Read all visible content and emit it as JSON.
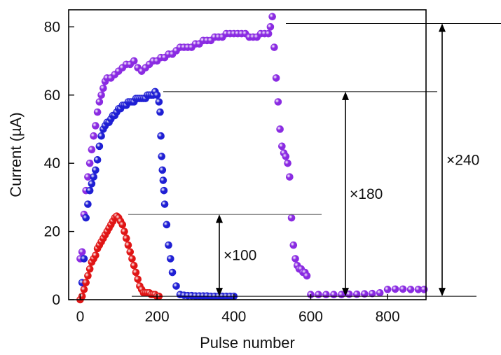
{
  "chart_data": {
    "type": "scatter",
    "title": "",
    "xlabel": "Pulse number",
    "ylabel": "Current (µA)",
    "xlim": [
      -30,
      900
    ],
    "ylim": [
      0,
      85
    ],
    "xticks": [
      0,
      200,
      400,
      600,
      800
    ],
    "yticks": [
      0,
      20,
      40,
      60,
      80
    ],
    "grid": false,
    "series": [
      {
        "color": "#8a2be2",
        "x": [
          0,
          5,
          10,
          15,
          20,
          25,
          30,
          35,
          40,
          45,
          50,
          55,
          60,
          65,
          70,
          80,
          90,
          100,
          110,
          120,
          130,
          140,
          150,
          160,
          170,
          180,
          190,
          200,
          210,
          220,
          230,
          240,
          250,
          260,
          270,
          280,
          290,
          300,
          310,
          320,
          330,
          340,
          350,
          360,
          370,
          380,
          390,
          400,
          410,
          420,
          430,
          440,
          450,
          460,
          470,
          480,
          490,
          495,
          500,
          505,
          510,
          515,
          520,
          525,
          530,
          535,
          540,
          545,
          550,
          555,
          560,
          565,
          570,
          575,
          580,
          585,
          590,
          600,
          620,
          640,
          660,
          680,
          700,
          720,
          740,
          760,
          780,
          800,
          820,
          840,
          860,
          880,
          895
        ],
        "y": [
          12,
          14,
          25,
          32,
          36,
          40,
          44,
          48,
          51,
          55,
          58,
          60,
          62,
          64,
          65,
          65,
          66,
          67,
          68,
          69,
          69,
          70,
          68,
          67,
          68,
          69,
          70,
          70,
          71,
          71,
          72,
          72,
          73,
          74,
          74,
          74,
          74,
          75,
          75,
          76,
          76,
          76,
          77,
          77,
          77,
          78,
          78,
          78,
          78,
          78,
          78,
          77,
          77,
          77,
          78,
          78,
          78,
          80,
          83,
          74,
          65,
          58,
          50,
          45,
          43,
          42,
          40,
          36,
          24,
          16,
          12,
          10,
          9,
          9,
          8,
          8,
          7,
          1.5,
          1.5,
          1.5,
          1.5,
          1.5,
          1.6,
          1.6,
          1.7,
          1.8,
          2.0,
          3.0,
          3.1,
          3.1,
          3.0,
          3.0,
          3.0
        ]
      },
      {
        "color": "#1f1fd4",
        "x": [
          5,
          10,
          15,
          20,
          25,
          30,
          35,
          40,
          45,
          50,
          55,
          60,
          65,
          70,
          75,
          80,
          85,
          90,
          95,
          100,
          105,
          110,
          115,
          120,
          125,
          130,
          135,
          140,
          145,
          150,
          155,
          160,
          165,
          170,
          175,
          180,
          185,
          190,
          195,
          200,
          205,
          208,
          210,
          212,
          214,
          216,
          218,
          220,
          225,
          230,
          235,
          240,
          250,
          260,
          270,
          280,
          290,
          300,
          310,
          320,
          330,
          340,
          350,
          360,
          370,
          380,
          390,
          400
        ],
        "y": [
          5,
          12,
          24,
          28,
          32,
          34,
          36,
          38,
          41,
          45,
          48,
          50,
          51,
          52,
          52,
          53,
          54,
          54,
          55,
          56,
          56,
          57,
          57,
          57,
          58,
          58,
          58,
          58,
          59,
          59,
          59,
          59,
          59,
          59,
          60,
          60,
          60,
          60,
          61,
          60,
          58,
          55,
          48,
          42,
          38,
          35,
          32,
          28,
          22,
          16,
          12,
          8,
          4,
          1.5,
          1.3,
          1.2,
          1.2,
          1.1,
          1.1,
          1.1,
          1.1,
          1.0,
          1.0,
          1.0,
          1.0,
          1.0,
          1.0,
          1.0
        ]
      },
      {
        "color": "#e01515",
        "x": [
          0,
          5,
          10,
          15,
          20,
          25,
          30,
          35,
          40,
          45,
          50,
          55,
          60,
          65,
          70,
          75,
          80,
          85,
          90,
          95,
          100,
          105,
          110,
          115,
          120,
          125,
          130,
          135,
          140,
          145,
          150,
          155,
          160,
          165,
          170,
          175,
          180,
          185,
          190,
          195,
          200,
          205
        ],
        "y": [
          0,
          1,
          3,
          5,
          7,
          9,
          11,
          12,
          13,
          15,
          16,
          17,
          18,
          19,
          20,
          21,
          22,
          23,
          24,
          24.5,
          24,
          23,
          22,
          20,
          18,
          16,
          14,
          12,
          10,
          8,
          6,
          4,
          3,
          2,
          2,
          2,
          2,
          1.5,
          1.5,
          1.5,
          1,
          1
        ]
      }
    ],
    "annotations": [
      {
        "label": "×100",
        "from": 1,
        "to": 25
      },
      {
        "label": "×180",
        "from": 1,
        "to": 61
      },
      {
        "label": "×240",
        "from": 1,
        "to": 81
      }
    ]
  }
}
